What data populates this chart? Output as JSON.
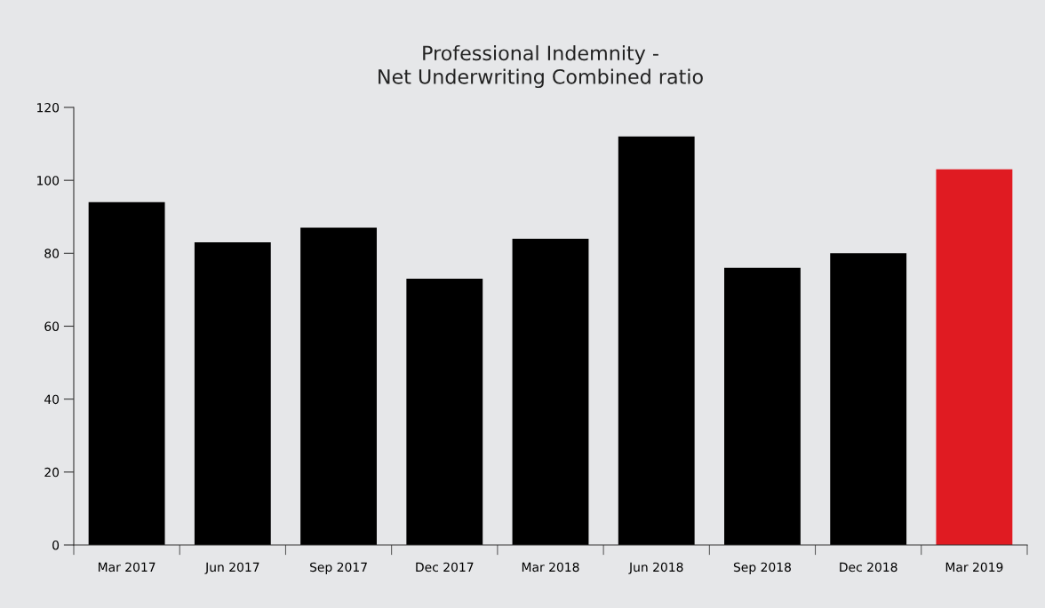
{
  "chart_data": {
    "type": "bar",
    "title": "Professional Indemnity -\nNet Underwriting Combined ratio",
    "categories": [
      "Mar 2017",
      "Jun 2017",
      "Sep 2017",
      "Dec 2017",
      "Mar 2018",
      "Jun 2018",
      "Sep 2018",
      "Dec 2018",
      "Mar 2019"
    ],
    "values": [
      94,
      83,
      87,
      73,
      84,
      112,
      76,
      80,
      103
    ],
    "colors": [
      "#000000",
      "#000000",
      "#000000",
      "#000000",
      "#000000",
      "#000000",
      "#000000",
      "#000000",
      "#e01b22"
    ],
    "ylim": [
      0,
      120
    ],
    "yticks": [
      0,
      20,
      40,
      60,
      80,
      100,
      120
    ],
    "grid": false,
    "legend": false
  }
}
